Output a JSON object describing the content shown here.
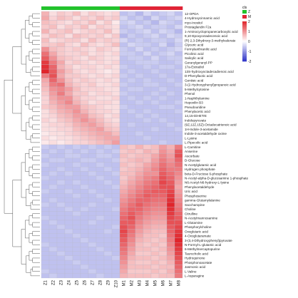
{
  "chart_data": {
    "type": "heatmap",
    "group_header": "cls",
    "groups": [
      {
        "name": "Z",
        "color": "#22c22c"
      },
      {
        "name": "M",
        "color": "#e02436"
      }
    ],
    "columns": [
      "Z1",
      "Z2",
      "Z3",
      "Z4",
      "Z5",
      "Z6",
      "Z7",
      "Z8",
      "Z9",
      "Z10",
      "M1",
      "M2",
      "M3",
      "M4",
      "M5",
      "M6",
      "M7",
      "M8"
    ],
    "column_groups": [
      "Z",
      "Z",
      "Z",
      "Z",
      "Z",
      "Z",
      "Z",
      "Z",
      "Z",
      "Z",
      "M",
      "M",
      "M",
      "M",
      "M",
      "M",
      "M",
      "M"
    ],
    "rows": [
      "12-OPDA",
      "4-Hydroxycinnamic acid",
      "myo-Inositol",
      "Prostaglandin F2a",
      "1-Aminocyclopropanecarboxylic acid",
      "9,10-Epoxyoctadecenoic acid",
      "(R) 2,3-Dihydroxy-3-methylvalerate",
      "Glyceric acid",
      "Formylanthranilic acid",
      "Picolinic acid",
      "Salicylic acid",
      "Geranylgeranyl-PP",
      "17a-Estradiol",
      "13S-hydroxyoctadecadienoic acid",
      "D-Phenyllactic acid",
      "Gentisic acid",
      "3-(2-Hydroxyphenyl)propanoic acid",
      "5-Methylcytosine",
      "Phenol",
      "1-Naphthylamine",
      "Hepoxilin B3",
      "Pseudouridine",
      "Phenylacetic acid",
      "14,15-DiHETrE",
      "Indolepyruvate",
      "(9Z,12Z,15Z)-Octadecatrienoic acid",
      "1H-Indole-3-acetamide",
      "Indole-3-acetaldehyde oxime",
      "L-Lysine",
      "L-Pipecolic acid",
      "L-Carnitine",
      "Anserine",
      "Ascorbate",
      "D-Glucose",
      "N-Acetylglutamic acid",
      "Hydrogen phosphate",
      "beta-D-Fructose 6-phosphate",
      "N-Acetyl-alpha-D-glucosamine 1-phosphate",
      "N6-Acetyl-N6-hydroxy-L-lysine",
      "Phenylacetaldehyde",
      "Uric acid",
      "Phosphoserine",
      "gamma-Glutamylalanine",
      "Saccharopine",
      "Choline",
      "Citrulline",
      "N-Acetylmannosamine",
      "L-Glutamine",
      "Phosphorylcholine",
      "Oxoglutaric acid",
      "4-Oxoglutaramate",
      "3-(3,4-Dihydroxyphenyl)pyruvate",
      "N-Formyl-L-glutamic acid",
      "6-Methylmercaptopurine",
      "Taurocholic acid",
      "Hydroquinone",
      "Phosphonoacetate",
      "Jasmonic acid",
      "L-Valine",
      "L-Asparagine"
    ],
    "row_tree_leaf_order": "as listed",
    "color_scale": {
      "min": -2,
      "max": 2,
      "low": "#2b31c8",
      "mid": "#ffffff",
      "high": "#e0252b"
    },
    "legend_ticks": [
      "2",
      "1",
      "0",
      "-1",
      "-2"
    ],
    "legend_position": "right-top",
    "values": [
      [
        0.7,
        0.3,
        0.5,
        0.4,
        0.6,
        0.3,
        0.5,
        0.4,
        0.3,
        0.4,
        -0.6,
        -0.5,
        -0.7,
        -0.4,
        -0.6,
        -0.5,
        -0.4,
        -0.6
      ],
      [
        0.8,
        0.4,
        0.6,
        0.5,
        0.3,
        0.5,
        0.4,
        0.6,
        0.4,
        0.5,
        -0.4,
        -0.6,
        -0.5,
        -0.7,
        -0.4,
        -0.6,
        -0.5,
        -0.4
      ],
      [
        0.6,
        0.5,
        0.4,
        0.3,
        0.5,
        0.4,
        0.6,
        0.3,
        0.5,
        0.2,
        -0.5,
        -0.4,
        -0.6,
        -0.5,
        -0.7,
        -0.4,
        -0.5,
        -0.6
      ],
      [
        0.5,
        0.6,
        0.3,
        0.5,
        0.4,
        0.6,
        0.3,
        0.5,
        0.4,
        0.3,
        -0.6,
        -0.5,
        -0.4,
        -0.6,
        -0.5,
        -0.5,
        -0.6,
        -0.4
      ],
      [
        0.7,
        0.4,
        0.5,
        0.6,
        0.3,
        0.4,
        0.5,
        0.4,
        0.6,
        0.3,
        -0.5,
        -0.6,
        -0.5,
        -0.4,
        -0.6,
        -0.4,
        -0.5,
        -0.7
      ],
      [
        0.4,
        0.6,
        0.5,
        0.3,
        0.6,
        0.5,
        0.4,
        0.5,
        0.3,
        0.5,
        -0.7,
        -0.5,
        -0.6,
        -0.5,
        -0.4,
        -0.6,
        -0.4,
        -0.5
      ],
      [
        0.6,
        0.3,
        0.4,
        0.5,
        0.5,
        0.3,
        0.6,
        0.4,
        0.5,
        0.4,
        -0.4,
        -0.6,
        -0.5,
        -0.6,
        -0.5,
        -0.5,
        -0.6,
        -0.4
      ],
      [
        0.5,
        0.5,
        0.6,
        0.4,
        0.3,
        0.6,
        0.4,
        0.3,
        0.4,
        0.6,
        -0.6,
        -0.4,
        -0.5,
        -0.5,
        -0.6,
        -0.4,
        -0.7,
        -0.5
      ],
      [
        1.0,
        0.6,
        0.5,
        0.4,
        0.5,
        0.4,
        0.3,
        0.5,
        0.4,
        0.3,
        -0.5,
        -0.6,
        -0.4,
        -0.6,
        -0.5,
        -0.6,
        -0.5,
        -0.4
      ],
      [
        1.3,
        0.8,
        0.5,
        0.4,
        0.4,
        0.5,
        0.3,
        0.4,
        0.3,
        0.4,
        -0.5,
        -0.5,
        -0.6,
        -0.4,
        -0.6,
        -0.5,
        -0.4,
        -0.6
      ],
      [
        1.5,
        1.0,
        0.6,
        0.5,
        0.4,
        0.3,
        0.5,
        0.4,
        0.3,
        0.3,
        -0.6,
        -0.5,
        -0.5,
        -0.6,
        -0.4,
        -0.6,
        -0.5,
        -0.5
      ],
      [
        1.8,
        1.2,
        0.8,
        0.4,
        0.5,
        0.4,
        0.3,
        0.4,
        0.3,
        0.4,
        -0.6,
        -0.6,
        -0.5,
        -0.5,
        -0.5,
        -0.6,
        -0.6,
        -0.5
      ],
      [
        1.9,
        1.4,
        0.7,
        0.5,
        0.3,
        0.4,
        0.4,
        0.3,
        0.4,
        0.3,
        -0.5,
        -0.6,
        -0.6,
        -0.5,
        -0.6,
        -0.5,
        -0.5,
        -0.6
      ],
      [
        2.0,
        1.5,
        0.9,
        0.6,
        0.4,
        0.3,
        0.4,
        0.3,
        0.2,
        0.3,
        -0.6,
        -0.5,
        -0.6,
        -0.6,
        -0.5,
        -0.6,
        -0.6,
        -0.5
      ],
      [
        1.2,
        1.6,
        0.8,
        0.5,
        0.5,
        0.4,
        0.3,
        0.4,
        0.3,
        0.4,
        -0.5,
        -0.6,
        -0.5,
        -0.6,
        -0.6,
        -0.5,
        -0.6,
        -0.6
      ],
      [
        0.8,
        1.4,
        1.0,
        0.6,
        0.4,
        0.5,
        0.4,
        0.3,
        0.4,
        0.3,
        -0.6,
        -0.5,
        -0.6,
        -0.5,
        -0.6,
        -0.6,
        -0.5,
        -0.6
      ],
      [
        0.7,
        1.2,
        1.3,
        0.7,
        0.5,
        0.4,
        0.5,
        0.3,
        0.3,
        0.4,
        -0.5,
        -0.6,
        -0.6,
        -0.5,
        -0.5,
        -0.6,
        -0.6,
        -0.5
      ],
      [
        0.6,
        1.0,
        1.1,
        0.9,
        0.6,
        0.4,
        0.4,
        0.4,
        0.3,
        0.3,
        -0.6,
        -0.5,
        -0.5,
        -0.6,
        -0.6,
        -0.5,
        -0.6,
        -0.6
      ],
      [
        0.5,
        0.9,
        1.2,
        0.8,
        0.5,
        0.5,
        0.3,
        0.4,
        0.4,
        0.3,
        -0.5,
        -0.6,
        -0.6,
        -0.6,
        -0.5,
        -0.6,
        -0.5,
        -0.6
      ],
      [
        0.4,
        0.8,
        1.0,
        1.0,
        0.6,
        0.4,
        0.4,
        0.3,
        0.3,
        0.4,
        -0.6,
        -0.5,
        -0.6,
        -0.5,
        -0.6,
        -0.5,
        -0.6,
        -0.6
      ],
      [
        0.4,
        0.7,
        0.9,
        1.1,
        0.7,
        0.5,
        0.3,
        0.4,
        0.4,
        0.3,
        -0.6,
        -0.6,
        -0.5,
        -0.6,
        -0.5,
        -0.6,
        -0.6,
        -0.5
      ],
      [
        0.5,
        0.6,
        0.8,
        0.9,
        0.9,
        0.6,
        0.5,
        0.4,
        0.3,
        0.3,
        -0.5,
        -0.6,
        -0.6,
        -0.6,
        -0.6,
        -0.5,
        -0.5,
        -0.6
      ],
      [
        0.3,
        0.5,
        0.7,
        0.8,
        1.0,
        0.7,
        0.5,
        0.4,
        0.4,
        0.3,
        -0.6,
        -0.5,
        -0.6,
        -0.5,
        -0.6,
        -0.6,
        -0.6,
        -0.5
      ],
      [
        0.3,
        0.4,
        0.6,
        0.7,
        0.9,
        0.9,
        0.6,
        0.5,
        0.3,
        0.4,
        -0.6,
        -0.6,
        -0.5,
        -0.6,
        -0.5,
        -0.6,
        -0.6,
        -0.6
      ],
      [
        0.4,
        0.3,
        0.5,
        0.6,
        0.8,
        1.0,
        0.8,
        0.6,
        0.4,
        0.3,
        -0.6,
        -0.6,
        -0.6,
        -0.5,
        -0.6,
        -0.5,
        -0.6,
        -0.6
      ],
      [
        0.3,
        0.4,
        0.4,
        0.5,
        0.7,
        0.8,
        0.9,
        0.7,
        0.5,
        0.4,
        -0.6,
        -0.5,
        -0.6,
        -0.6,
        -0.6,
        -0.6,
        -0.5,
        -0.6
      ],
      [
        0.3,
        0.3,
        0.4,
        0.4,
        0.6,
        0.7,
        0.8,
        0.9,
        0.6,
        0.5,
        -0.6,
        -0.6,
        -0.6,
        -0.6,
        -0.5,
        -0.6,
        -0.6,
        -0.5
      ],
      [
        0.2,
        0.3,
        0.3,
        0.4,
        0.5,
        0.6,
        0.7,
        0.8,
        0.8,
        0.6,
        -0.6,
        -0.6,
        -0.5,
        -0.6,
        -0.6,
        -0.6,
        -0.6,
        -0.6
      ],
      [
        0.3,
        0.2,
        0.3,
        0.3,
        0.4,
        0.5,
        0.6,
        0.7,
        0.8,
        0.8,
        -0.6,
        -0.6,
        -0.6,
        -0.5,
        -0.6,
        -0.6,
        -0.6,
        -0.6
      ],
      [
        0.2,
        0.3,
        0.2,
        0.3,
        0.4,
        0.4,
        0.5,
        0.6,
        0.7,
        0.9,
        -0.6,
        -0.6,
        -0.6,
        -0.6,
        -0.6,
        -0.5,
        -0.6,
        -0.6
      ],
      [
        -0.5,
        -0.6,
        -0.5,
        -0.6,
        -0.5,
        -0.6,
        -0.5,
        -0.6,
        -0.5,
        -0.6,
        0.6,
        0.5,
        0.7,
        0.5,
        0.6,
        0.9,
        0.7,
        1.2
      ],
      [
        -0.6,
        -0.5,
        -0.6,
        -0.5,
        -0.6,
        -0.5,
        -0.6,
        -0.5,
        -0.6,
        -0.5,
        0.5,
        0.6,
        0.5,
        0.7,
        0.6,
        1.0,
        0.8,
        1.5
      ],
      [
        -0.5,
        -0.6,
        -0.6,
        -0.5,
        -0.5,
        -0.6,
        -0.6,
        -0.5,
        -0.5,
        -0.6,
        0.6,
        0.5,
        0.6,
        0.6,
        0.8,
        1.1,
        0.9,
        1.6
      ],
      [
        -0.6,
        -0.5,
        -0.5,
        -0.6,
        -0.6,
        -0.5,
        -0.5,
        -0.6,
        -0.6,
        -0.5,
        0.5,
        0.6,
        0.7,
        0.6,
        0.9,
        1.2,
        1.0,
        1.4
      ],
      [
        -0.5,
        -0.6,
        -0.6,
        -0.6,
        -0.5,
        -0.6,
        -0.6,
        -0.5,
        -0.6,
        -0.6,
        0.6,
        0.5,
        0.6,
        0.8,
        1.0,
        1.3,
        1.1,
        1.3
      ],
      [
        -0.6,
        -0.6,
        -0.5,
        -0.6,
        -0.6,
        -0.5,
        -0.6,
        -0.6,
        -0.5,
        -0.6,
        0.5,
        0.6,
        0.7,
        0.9,
        1.1,
        1.4,
        1.2,
        1.2
      ],
      [
        -0.6,
        -0.5,
        -0.6,
        -0.5,
        -0.6,
        -0.6,
        -0.5,
        -0.6,
        -0.6,
        -0.5,
        0.6,
        0.6,
        0.8,
        1.0,
        1.0,
        1.5,
        1.3,
        1.1
      ],
      [
        -0.5,
        -0.6,
        -0.6,
        -0.6,
        -0.6,
        -0.6,
        -0.6,
        -0.5,
        -0.6,
        -0.6,
        0.5,
        0.7,
        0.9,
        1.1,
        1.2,
        1.6,
        1.4,
        1.0
      ],
      [
        -0.6,
        -0.6,
        -0.5,
        -0.6,
        -0.5,
        -0.6,
        -0.6,
        -0.6,
        -0.5,
        -0.6,
        0.6,
        0.8,
        1.0,
        1.2,
        1.3,
        1.7,
        1.5,
        0.9
      ],
      [
        -0.6,
        -0.5,
        -0.6,
        -0.6,
        -0.6,
        -0.5,
        -0.6,
        -0.6,
        -0.6,
        -0.5,
        0.7,
        0.9,
        1.1,
        1.3,
        1.4,
        1.6,
        1.6,
        0.8
      ],
      [
        -0.5,
        -0.6,
        -0.6,
        -0.5,
        -0.6,
        -0.6,
        -0.5,
        -0.6,
        -0.6,
        -0.6,
        0.8,
        1.0,
        1.2,
        1.4,
        1.5,
        1.5,
        1.7,
        0.9
      ],
      [
        -0.6,
        -0.6,
        -0.6,
        -0.6,
        -0.5,
        -0.6,
        -0.6,
        -0.5,
        -0.6,
        -0.6,
        0.9,
        1.1,
        1.3,
        1.5,
        1.4,
        1.4,
        1.8,
        1.0
      ],
      [
        -0.6,
        -0.5,
        -0.6,
        -0.6,
        -0.6,
        -0.6,
        -0.6,
        -0.6,
        -0.5,
        -0.6,
        1.0,
        1.2,
        1.4,
        1.4,
        1.3,
        1.3,
        1.9,
        1.1
      ],
      [
        -0.5,
        -0.6,
        -0.5,
        -0.6,
        -0.6,
        -0.6,
        -0.5,
        -0.6,
        -0.6,
        -0.6,
        1.1,
        1.3,
        1.5,
        1.3,
        1.2,
        1.2,
        2.0,
        1.2
      ],
      [
        -0.6,
        -0.6,
        -0.6,
        -0.5,
        -0.6,
        -0.5,
        -0.6,
        -0.6,
        -0.6,
        -0.5,
        1.2,
        1.4,
        1.4,
        1.2,
        1.1,
        1.1,
        1.9,
        1.3
      ],
      [
        -0.6,
        -0.6,
        -0.6,
        -0.6,
        -0.5,
        -0.6,
        -0.6,
        -0.6,
        -0.6,
        -0.6,
        1.3,
        1.5,
        1.3,
        1.1,
        1.0,
        1.0,
        1.8,
        1.4
      ],
      [
        -0.5,
        -0.6,
        -0.6,
        -0.6,
        -0.6,
        -0.6,
        -0.6,
        -0.5,
        -0.6,
        -0.6,
        1.4,
        1.6,
        1.2,
        1.0,
        0.9,
        0.9,
        1.7,
        1.5
      ],
      [
        -0.6,
        -0.5,
        -0.6,
        -0.6,
        -0.6,
        -0.6,
        -0.5,
        -0.6,
        -0.6,
        -0.6,
        1.5,
        1.5,
        1.1,
        0.9,
        0.8,
        0.8,
        1.6,
        1.6
      ],
      [
        -0.6,
        -0.6,
        -0.5,
        -0.6,
        -0.6,
        -0.6,
        -0.6,
        -0.6,
        -0.6,
        -0.5,
        1.6,
        1.4,
        1.0,
        0.8,
        0.7,
        0.7,
        1.5,
        1.7
      ],
      [
        -0.6,
        -0.6,
        -0.6,
        -0.5,
        -0.6,
        -0.6,
        -0.6,
        -0.6,
        -0.5,
        -0.6,
        1.7,
        1.3,
        0.9,
        0.7,
        0.6,
        0.6,
        1.4,
        1.8
      ],
      [
        -0.6,
        -0.6,
        -0.6,
        -0.6,
        -0.5,
        -0.6,
        -0.6,
        -0.6,
        -0.6,
        -0.6,
        1.6,
        1.2,
        0.8,
        0.6,
        0.6,
        0.5,
        1.3,
        1.9
      ],
      [
        -0.6,
        -0.6,
        -0.6,
        -0.6,
        -0.6,
        -0.5,
        -0.6,
        -0.6,
        -0.6,
        -0.6,
        1.5,
        1.1,
        0.7,
        0.6,
        0.5,
        0.6,
        1.2,
        2.0
      ],
      [
        -0.5,
        -0.6,
        -0.6,
        -0.6,
        -0.6,
        -0.6,
        -0.5,
        -0.6,
        -0.6,
        -0.6,
        1.4,
        1.0,
        0.6,
        0.5,
        0.6,
        0.5,
        1.1,
        1.9
      ],
      [
        -0.6,
        -0.5,
        -0.6,
        -0.6,
        -0.6,
        -0.6,
        -0.6,
        -0.5,
        -0.6,
        -0.6,
        1.3,
        0.9,
        0.6,
        0.6,
        0.5,
        0.6,
        1.0,
        1.8
      ],
      [
        -0.6,
        -0.6,
        -0.5,
        -0.6,
        -0.6,
        -0.6,
        -0.6,
        -0.6,
        -0.5,
        -0.6,
        1.2,
        0.8,
        0.5,
        0.5,
        0.6,
        0.5,
        0.9,
        1.7
      ],
      [
        -0.6,
        -0.6,
        -0.6,
        -0.5,
        -0.6,
        -0.6,
        -0.6,
        -0.6,
        -0.6,
        -0.5,
        1.1,
        0.7,
        0.6,
        0.6,
        0.5,
        0.6,
        0.8,
        1.6
      ],
      [
        -0.6,
        -0.6,
        -0.6,
        -0.6,
        -0.5,
        -0.6,
        -0.6,
        -0.6,
        -0.6,
        -0.6,
        1.0,
        0.6,
        0.5,
        0.5,
        0.6,
        0.5,
        0.7,
        1.5
      ],
      [
        -0.6,
        -0.6,
        -0.6,
        -0.6,
        -0.6,
        -0.5,
        -0.6,
        -0.6,
        -0.6,
        -0.6,
        0.9,
        0.6,
        0.6,
        0.6,
        0.5,
        0.6,
        0.6,
        1.4
      ],
      [
        -0.5,
        -0.6,
        -0.6,
        -0.6,
        -0.6,
        -0.6,
        -0.5,
        -0.6,
        -0.6,
        -0.6,
        0.8,
        0.5,
        0.5,
        0.5,
        0.6,
        0.5,
        0.7,
        1.3
      ],
      [
        -0.6,
        -0.5,
        -0.6,
        -0.6,
        -0.6,
        -0.6,
        -0.6,
        -0.5,
        -0.6,
        -0.6,
        0.7,
        0.6,
        0.6,
        0.6,
        0.5,
        0.6,
        0.6,
        1.2
      ]
    ]
  }
}
